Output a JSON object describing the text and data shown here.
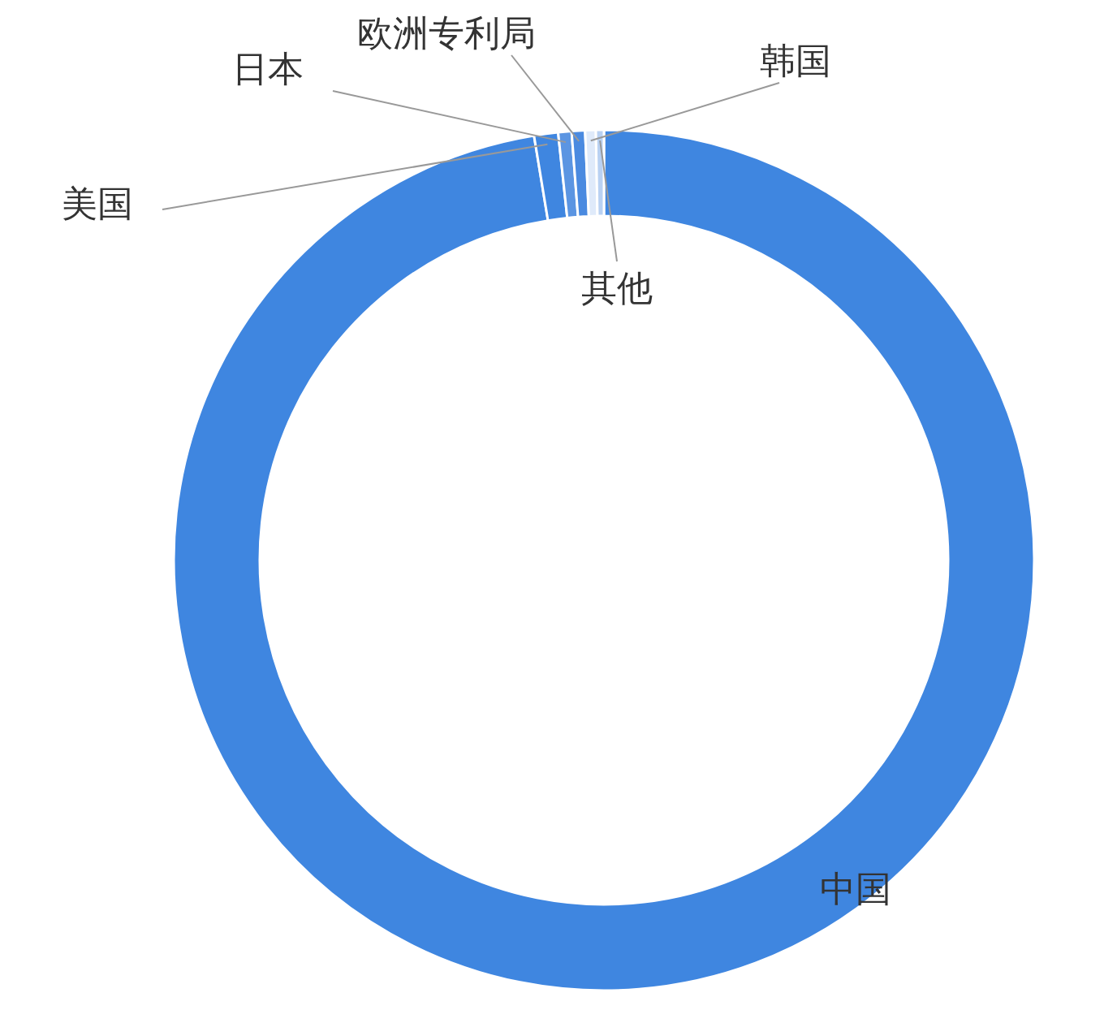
{
  "chart_data": {
    "type": "donut",
    "categories": [
      "中国",
      "美国",
      "日本",
      "欧洲专利局",
      "韩国",
      "其他"
    ],
    "values": [
      97.4,
      0.9,
      0.5,
      0.5,
      0.4,
      0.3
    ],
    "colors": [
      "#3f86e0",
      "#3f86e0",
      "#5b95e2",
      "#4a8ae0",
      "#dfeafa",
      "#b9d1f2"
    ]
  }
}
